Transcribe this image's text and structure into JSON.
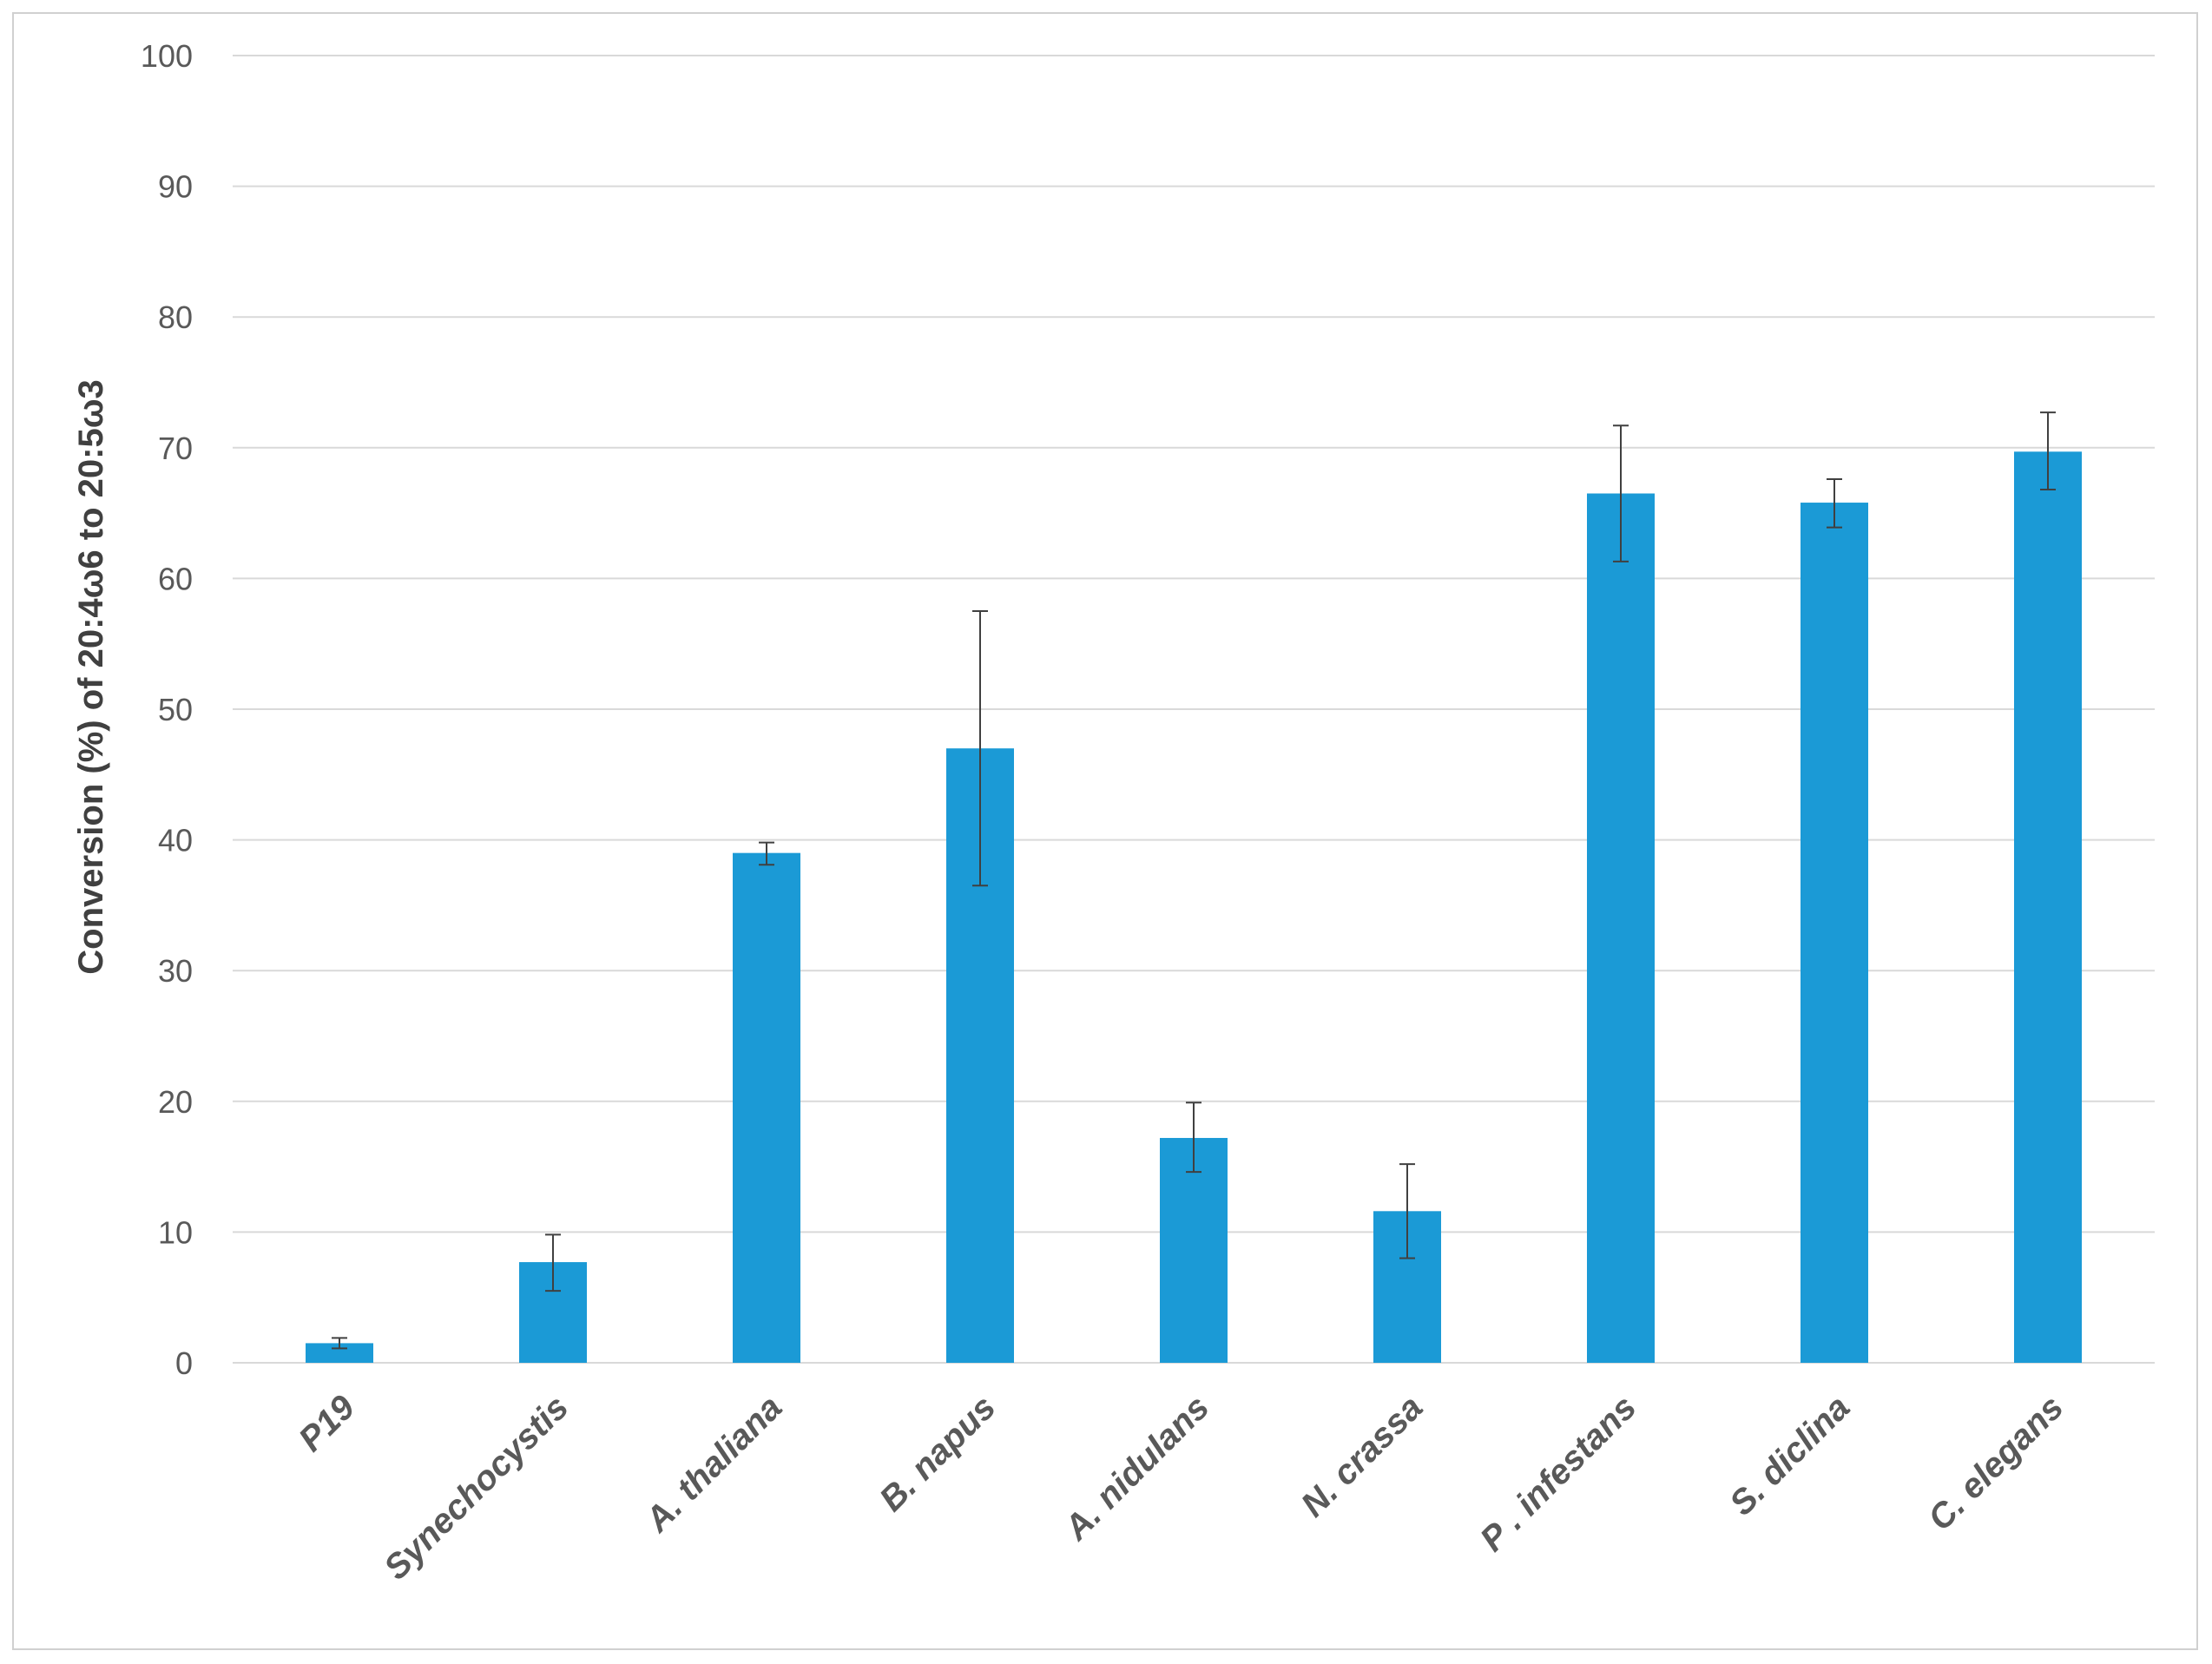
{
  "chart_data": {
    "type": "bar",
    "title": "",
    "xlabel": "",
    "ylabel": "Conversion (%) of 20:4ω6 to 20:5ω3",
    "ylim": [
      0,
      100
    ],
    "yticks": [
      0,
      10,
      20,
      30,
      40,
      50,
      60,
      70,
      80,
      90,
      100
    ],
    "grid": true,
    "categories": [
      "P19",
      "Synechocystis",
      "A. thaliana",
      "B. napus",
      "A. nidulans",
      "N. crassa",
      "P . infestans",
      "S. diclina",
      "C. elegans"
    ],
    "values": [
      1.5,
      7.7,
      39.0,
      47.0,
      17.2,
      11.6,
      66.5,
      65.8,
      69.7
    ],
    "error_low": [
      1.1,
      5.5,
      38.1,
      36.5,
      14.6,
      8.0,
      61.3,
      63.9,
      66.8
    ],
    "error_high": [
      1.9,
      9.8,
      39.8,
      57.5,
      19.9,
      15.2,
      71.7,
      67.6,
      72.7
    ],
    "colors": {
      "bar": "#1b9ad6",
      "grid": "#d9d9d9",
      "error_bar": "#404040"
    }
  }
}
